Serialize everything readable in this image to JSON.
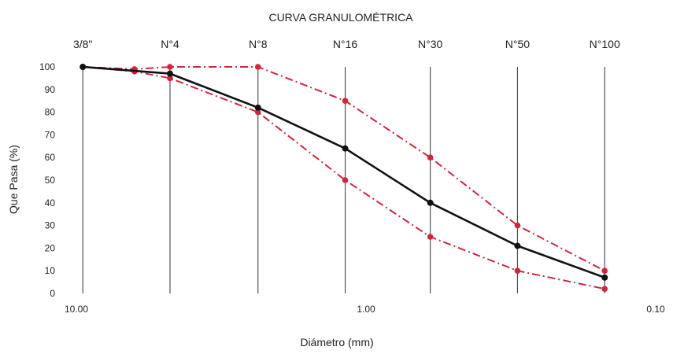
{
  "chart_data": {
    "type": "line",
    "title": "CURVA GRANULOMÉTRICA",
    "xlabel": "Diámetro (mm)",
    "ylabel": "Que Pasa (%)",
    "x_scale": "log",
    "x_reversed": true,
    "xlim": [
      10.0,
      0.1
    ],
    "ylim": [
      0,
      100
    ],
    "x_ticks": [
      {
        "value": 10.0,
        "label": "10.00"
      },
      {
        "value": 1.0,
        "label": "1.00"
      },
      {
        "value": 0.1,
        "label": "0.10"
      }
    ],
    "y_ticks": [
      0,
      10,
      20,
      30,
      40,
      50,
      60,
      70,
      80,
      90,
      100
    ],
    "sieves": [
      {
        "label": "3/8\"",
        "diameter": 9.5
      },
      {
        "label": "N°4",
        "diameter": 4.75
      },
      {
        "label": "N°8",
        "diameter": 2.36
      },
      {
        "label": "N°16",
        "diameter": 1.18
      },
      {
        "label": "N°30",
        "diameter": 0.6
      },
      {
        "label": "N°50",
        "diameter": 0.3
      },
      {
        "label": "N°100",
        "diameter": 0.15
      }
    ],
    "grid": "vertical lines at sieve sizes",
    "legend": "none",
    "series": [
      {
        "style": "solid",
        "color": "#111111",
        "x": [
          9.5,
          4.75,
          2.36,
          1.18,
          0.6,
          0.3,
          0.15
        ],
        "values": [
          100,
          97,
          82,
          64,
          40,
          21,
          7
        ]
      },
      {
        "style": "dash-dot",
        "color": "#d0253e",
        "x": [
          9.5,
          6.3,
          4.75,
          2.36,
          1.18,
          0.6,
          0.3,
          0.15
        ],
        "values": [
          100,
          99,
          100,
          100,
          85,
          60,
          30,
          10
        ]
      },
      {
        "style": "dash-dot",
        "color": "#d0253e",
        "x": [
          9.5,
          6.3,
          4.75,
          2.36,
          1.18,
          0.6,
          0.3,
          0.15
        ],
        "values": [
          100,
          98,
          95,
          80,
          50,
          25,
          10,
          2
        ]
      }
    ]
  }
}
